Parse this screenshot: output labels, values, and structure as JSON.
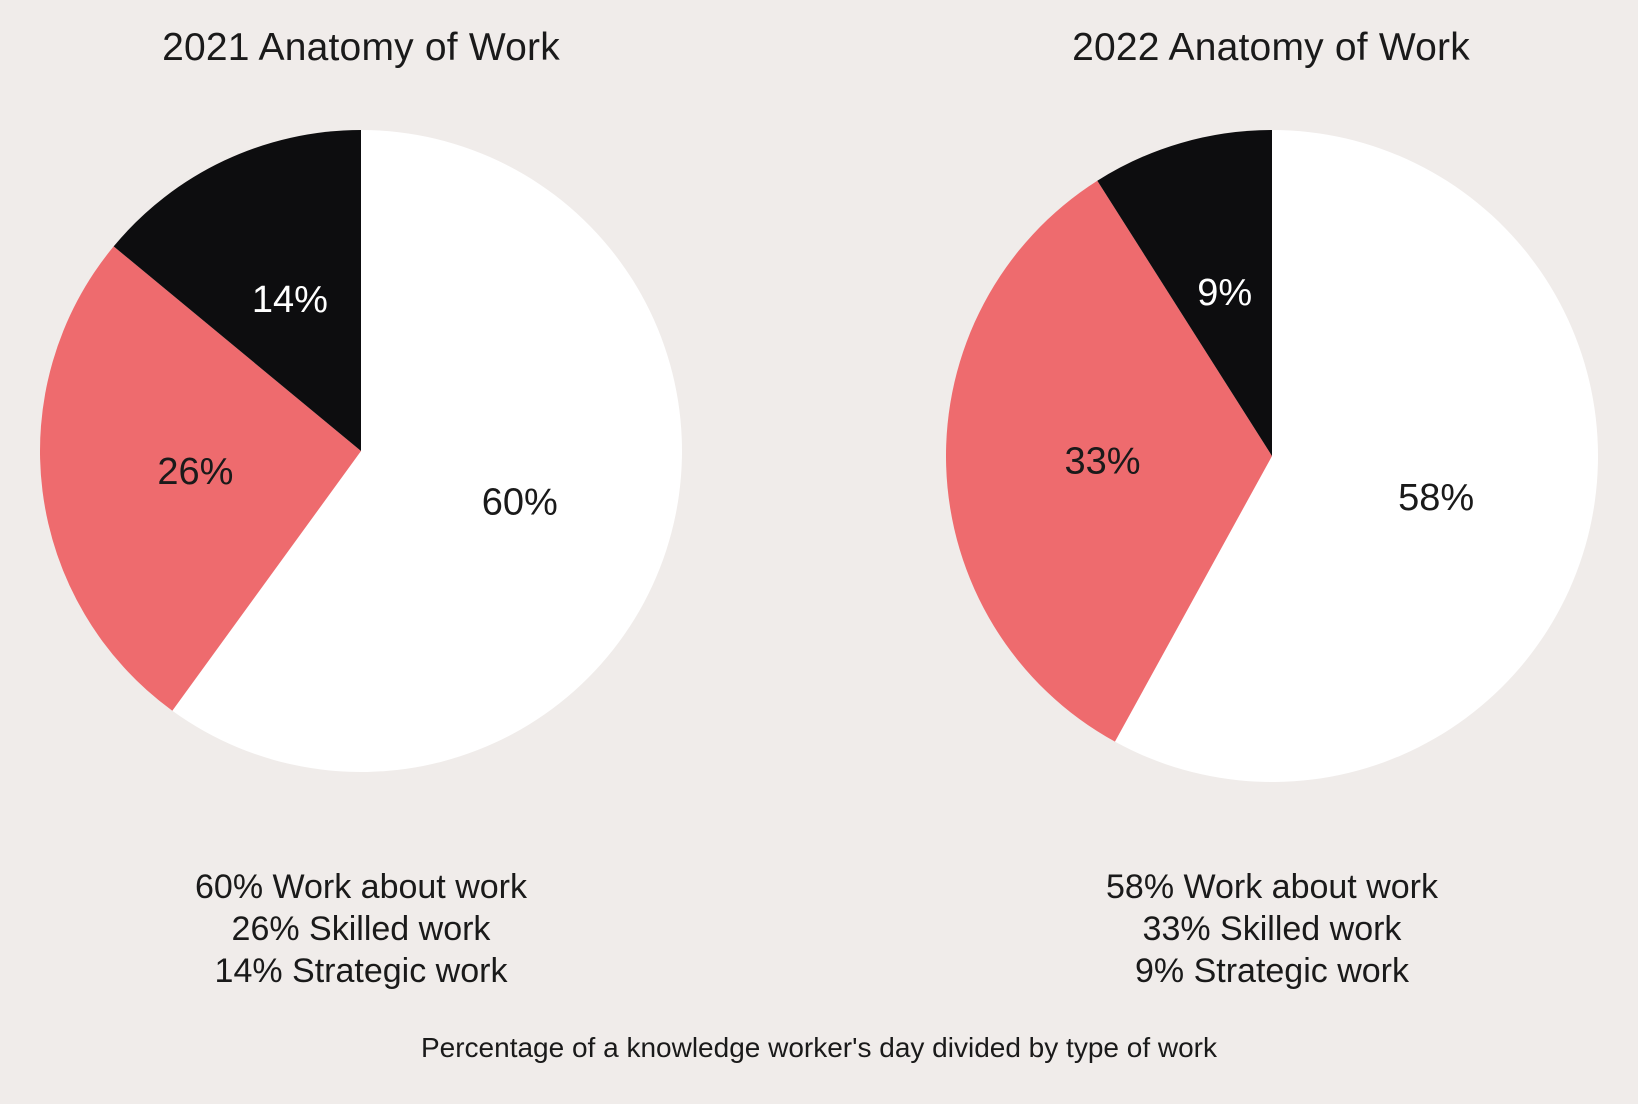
{
  "caption": "Percentage of a knowledge worker's day divided by type of work",
  "colors": {
    "work_about_work": "#ffffff",
    "skilled_work": "#ee6b6e",
    "strategic_work": "#0d0d0f",
    "background": "#f0ecea"
  },
  "chart_data": [
    {
      "type": "pie",
      "title": "2021 Anatomy of Work",
      "slices": [
        {
          "category": "Work about work",
          "value": 60,
          "label": "60%",
          "color": "#ffffff",
          "label_color": "#1a1a1a"
        },
        {
          "category": "Skilled work",
          "value": 26,
          "label": "26%",
          "color": "#ee6b6e",
          "label_color": "#1a1a1a"
        },
        {
          "category": "Strategic work",
          "value": 14,
          "label": "14%",
          "color": "#0d0d0f",
          "label_color": "#ffffff"
        }
      ],
      "legend": [
        "60% Work about work",
        "26% Skilled work",
        "14% Strategic work"
      ],
      "legend_placement": "bottom"
    },
    {
      "type": "pie",
      "title": "2022 Anatomy of Work",
      "slices": [
        {
          "category": "Work about work",
          "value": 58,
          "label": "58%",
          "color": "#ffffff",
          "label_color": "#1a1a1a"
        },
        {
          "category": "Skilled work",
          "value": 33,
          "label": "33%",
          "color": "#ee6b6e",
          "label_color": "#1a1a1a"
        },
        {
          "category": "Strategic work",
          "value": 9,
          "label": "9%",
          "color": "#0d0d0f",
          "label_color": "#ffffff"
        }
      ],
      "legend": [
        "58% Work about work",
        "33% Skilled work",
        "9% Strategic work"
      ],
      "legend_placement": "bottom"
    }
  ]
}
